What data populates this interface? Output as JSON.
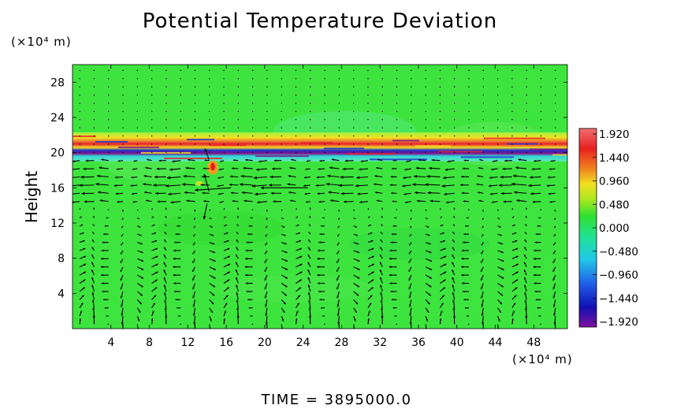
{
  "chart_data": {
    "type": "heatmap",
    "title": "Potential Temperature Deviation",
    "ylabel": "Height",
    "y_unit": "(×10⁴ m)",
    "x_unit": "(×10⁴ m)",
    "x_ticks": [
      "4",
      "8",
      "12",
      "16",
      "20",
      "24",
      "28",
      "32",
      "36",
      "40",
      "44",
      "48"
    ],
    "y_ticks": [
      "4",
      "8",
      "12",
      "16",
      "20",
      "24",
      "28"
    ],
    "xlim": [
      0,
      51.5
    ],
    "ylim": [
      0,
      30
    ],
    "colorbar": {
      "labels": [
        "1.920",
        "1.440",
        "0.960",
        "0.480",
        "0.000",
        "−0.480",
        "−0.960",
        "−1.440",
        "−1.920"
      ],
      "range": [
        -1.92,
        1.92
      ]
    },
    "background_value": 0.2,
    "features": {
      "tropopause_band_height": 20,
      "overlay": "velocity-vectors"
    },
    "time_label": "TIME  =  3895000.0"
  },
  "colors": {
    "field_green": "#3ee43e",
    "arrow": "#000000",
    "band_red": "#e8202a",
    "band_blue": "#2030d0",
    "band_purple": "#80108a",
    "band_yellow": "#f0e020",
    "band_cyan": "#30d8d8"
  }
}
